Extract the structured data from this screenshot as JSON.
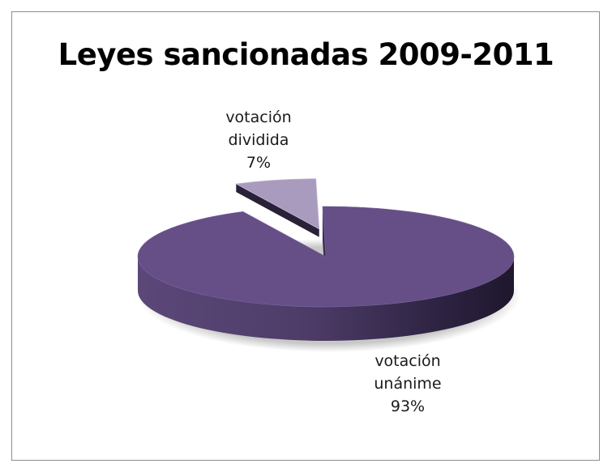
{
  "chart_data": {
    "type": "pie",
    "title": "Leyes sancionadas 2009-2011",
    "slices": [
      {
        "label": "votación unánime",
        "value": 93,
        "percent_label": "93%",
        "color": "#654f86"
      },
      {
        "label": "votación dividida",
        "value": 7,
        "percent_label": "7%",
        "color": "#a89bbd"
      }
    ],
    "exploded_slice": "votación dividida"
  }
}
